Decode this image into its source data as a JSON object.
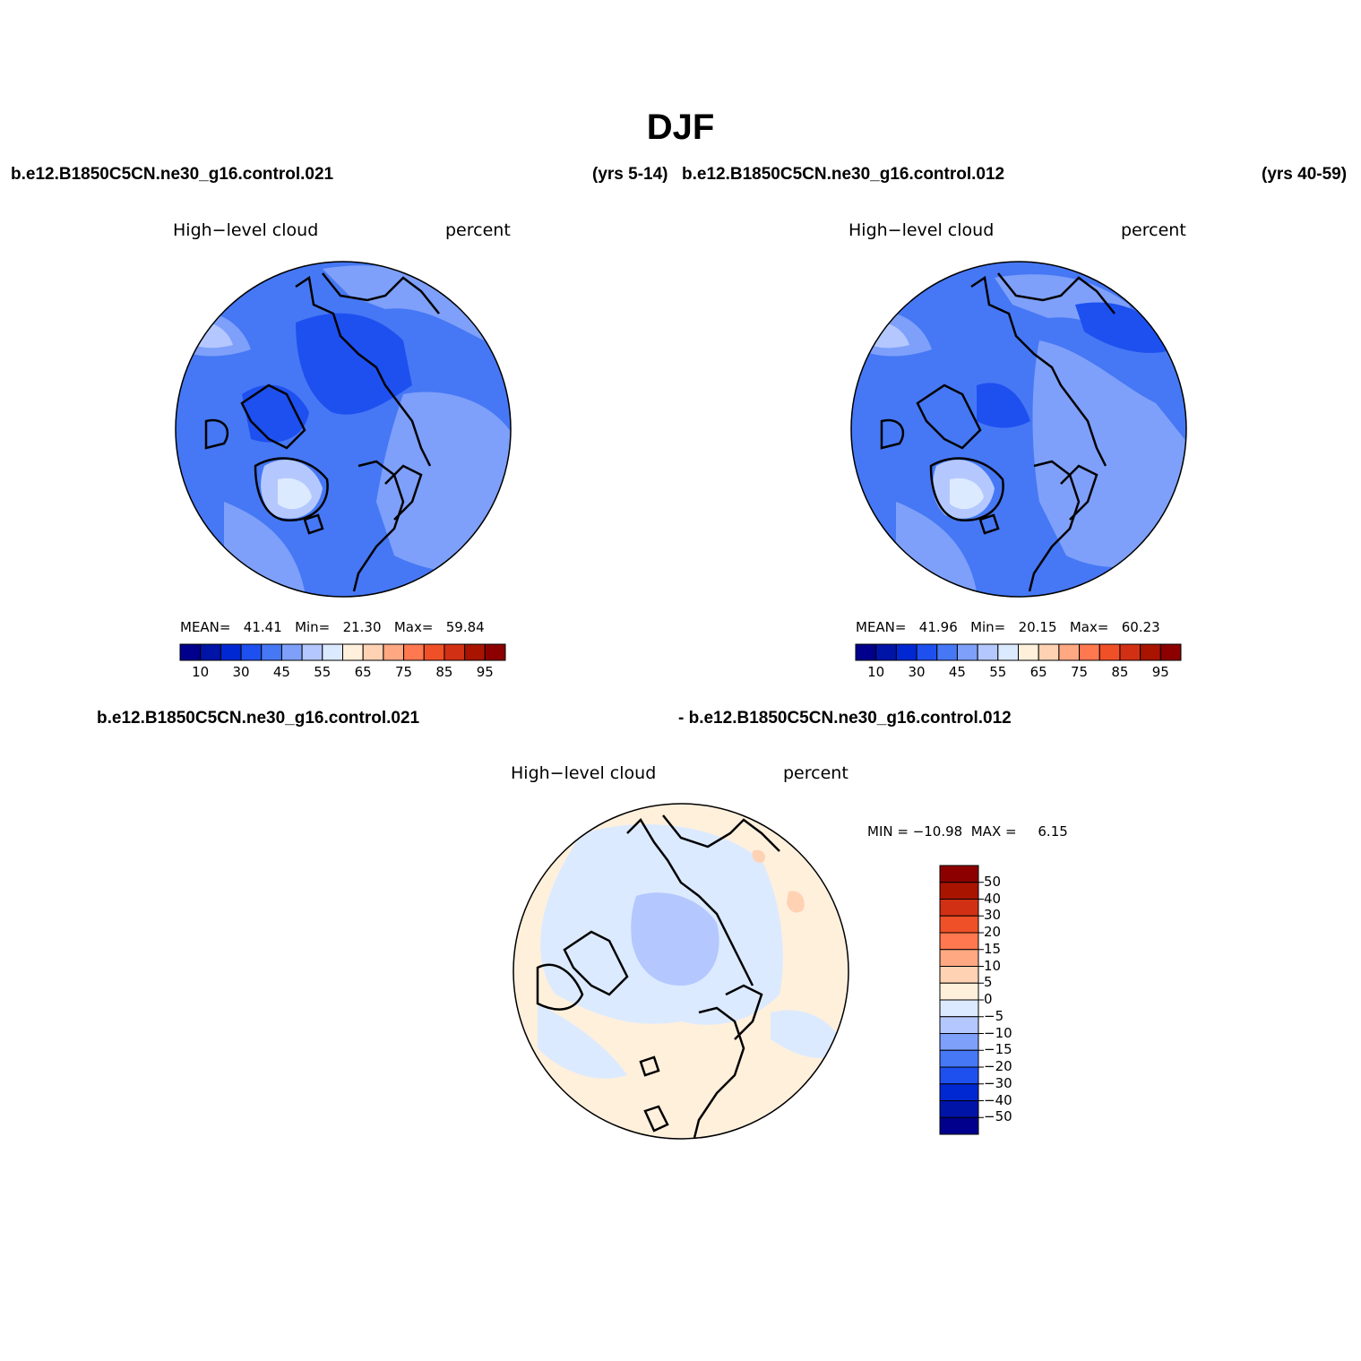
{
  "season": "DJF",
  "colors": {
    "abs": [
      "#00008c",
      "#0014a8",
      "#0028d2",
      "#1e50f0",
      "#4678f5",
      "#7ea0fa",
      "#b4c8ff",
      "#dceaff",
      "#fff0dc",
      "#ffd2b4",
      "#ffa882",
      "#ff7850",
      "#f05028",
      "#d23014",
      "#a81400",
      "#8c0000"
    ],
    "diff": [
      "#00008c",
      "#0014a8",
      "#0028d2",
      "#1e50f0",
      "#4678f5",
      "#7ea0fa",
      "#b4c8ff",
      "#dceaff",
      "#fff0dc",
      "#ffd2b4",
      "#ffa882",
      "#ff7850",
      "#f05028",
      "#d23014",
      "#a81400",
      "#8c0000"
    ]
  },
  "panels": {
    "left": {
      "case": "b.e12.B1850C5CN.ne30_g16.control.021",
      "years": "(yrs 5-14)",
      "variable": "High−level cloud",
      "units": "percent",
      "mean_label": "MEAN=",
      "mean": "41.41",
      "min_label": "Min=",
      "min": "21.30",
      "max_label": "Max=",
      "max": "59.84"
    },
    "right": {
      "case": "b.e12.B1850C5CN.ne30_g16.control.012",
      "years": "(yrs 40-59)",
      "variable": "High−level cloud",
      "units": "percent",
      "mean_label": "MEAN=",
      "mean": "41.96",
      "min_label": "Min=",
      "min": "20.15",
      "max_label": "Max=",
      "max": "60.23"
    },
    "diff": {
      "case_a": "b.e12.B1850C5CN.ne30_g16.control.021",
      "case_b": "- b.e12.B1850C5CN.ne30_g16.control.012",
      "variable": "High−level cloud",
      "units": "percent",
      "minmax": "MIN = −10.98  MAX =     6.15"
    }
  },
  "colorbar_abs_labels": [
    "10",
    "30",
    "45",
    "55",
    "65",
    "75",
    "85",
    "95"
  ],
  "colorbar_diff_labels": [
    "50",
    "40",
    "30",
    "20",
    "15",
    "10",
    "5",
    "0",
    "−5",
    "−10",
    "−15",
    "−20",
    "−30",
    "−40",
    "−50"
  ]
}
